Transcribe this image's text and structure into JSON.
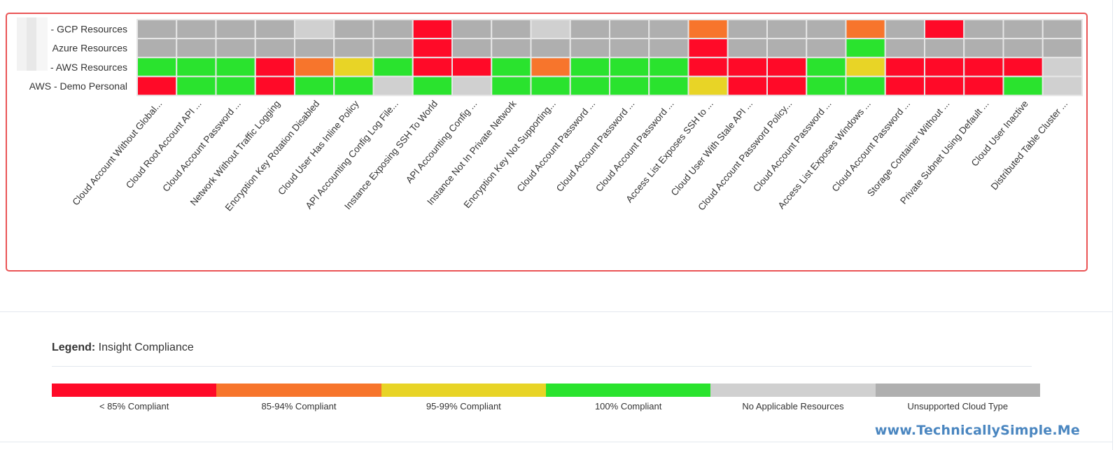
{
  "chart_data": {
    "type": "heatmap",
    "title": "Insight Compliance",
    "rows": [
      "- GCP Resources",
      "Azure Resources",
      "- AWS Resources",
      "AWS - Demo Personal"
    ],
    "columns": [
      "Cloud Account Without Global...",
      "Cloud Root Account API ...",
      "Cloud Account Password ...",
      "Network Without Traffic Logging",
      "Encryption Key Rotation Disabled",
      "Cloud User Has Inline Policy",
      "API Accounting Config Log File...",
      "Instance Exposing SSH To World",
      "API Accounting Config ...",
      "Instance Not In Private Network",
      "Encryption Key Not Supporting...",
      "Cloud Account Password ...",
      "Cloud Account Password ...",
      "Cloud Account Password ...",
      "Access List Exposes SSH to ...",
      "Cloud User With Stale API ...",
      "Cloud Account Password Policy...",
      "Cloud Account Password ...",
      "Access List Exposes Windows ...",
      "Cloud Account Password ...",
      "Storage Container Without ...",
      "Private Subnet Using Default ...",
      "Cloud User Inactive",
      "Distributed Table Cluster ..."
    ],
    "values": [
      [
        "unsupported",
        "unsupported",
        "unsupported",
        "unsupported",
        "na",
        "unsupported",
        "unsupported",
        "lt85",
        "unsupported",
        "unsupported",
        "na",
        "unsupported",
        "unsupported",
        "unsupported",
        "85-94",
        "unsupported",
        "unsupported",
        "unsupported",
        "85-94",
        "unsupported",
        "lt85",
        "unsupported",
        "unsupported",
        "unsupported"
      ],
      [
        "unsupported",
        "unsupported",
        "unsupported",
        "unsupported",
        "unsupported",
        "unsupported",
        "unsupported",
        "lt85",
        "unsupported",
        "unsupported",
        "unsupported",
        "unsupported",
        "unsupported",
        "unsupported",
        "lt85",
        "unsupported",
        "unsupported",
        "unsupported",
        "100",
        "unsupported",
        "unsupported",
        "unsupported",
        "unsupported",
        "unsupported"
      ],
      [
        "100",
        "100",
        "100",
        "lt85",
        "85-94",
        "95-99",
        "100",
        "lt85",
        "lt85",
        "100",
        "85-94",
        "100",
        "100",
        "100",
        "lt85",
        "lt85",
        "lt85",
        "100",
        "95-99",
        "lt85",
        "lt85",
        "lt85",
        "lt85",
        "na"
      ],
      [
        "lt85",
        "100",
        "100",
        "lt85",
        "100",
        "100",
        "na",
        "100",
        "na",
        "100",
        "100",
        "100",
        "100",
        "100",
        "95-99",
        "lt85",
        "lt85",
        "100",
        "100",
        "lt85",
        "lt85",
        "lt85",
        "100",
        "na"
      ]
    ],
    "legend": {
      "title_prefix": "Legend:",
      "title": "Insight Compliance",
      "placement": "bottom",
      "categories": [
        {
          "key": "lt85",
          "label": "< 85% Compliant",
          "color": "#ff0a28"
        },
        {
          "key": "85-94",
          "label": "85-94% Compliant",
          "color": "#f7752c"
        },
        {
          "key": "95-99",
          "label": "95-99% Compliant",
          "color": "#e8d426"
        },
        {
          "key": "100",
          "label": "100% Compliant",
          "color": "#2ae32e"
        },
        {
          "key": "na",
          "label": "No Applicable Resources",
          "color": "#d0d0d0"
        },
        {
          "key": "unsupported",
          "label": "Unsupported Cloud Type",
          "color": "#afafaf"
        }
      ]
    }
  },
  "card_border_color": "#ea5455",
  "watermark": "www.TechnicallySimple.Me"
}
